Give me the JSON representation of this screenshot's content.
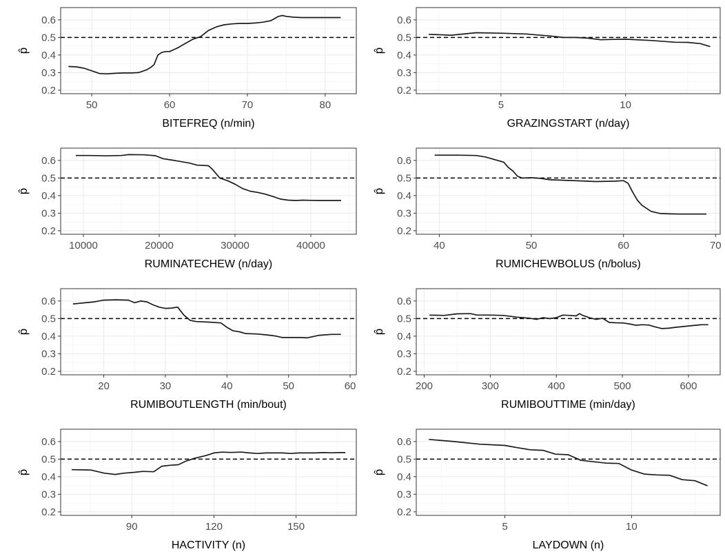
{
  "chart_data": [
    {
      "type": "line",
      "xlabel": "BITEFREQ (n/min)",
      "ylabel": "p̂",
      "xlim": [
        46,
        84
      ],
      "ylim": [
        0.18,
        0.67
      ],
      "xticks": [
        50,
        60,
        70,
        80
      ],
      "yticks": [
        0.2,
        0.3,
        0.4,
        0.5,
        0.6
      ],
      "reference_line": 0.5,
      "x": [
        47,
        48,
        49,
        50,
        51,
        52,
        53,
        54,
        55,
        56,
        57,
        57.6,
        58,
        58.5,
        59,
        59.5,
        60,
        61,
        62,
        63,
        64,
        65,
        66,
        67,
        68,
        69,
        70,
        71,
        72,
        73,
        74,
        74.5,
        75,
        76,
        77,
        78,
        79,
        80,
        81,
        82
      ],
      "y": [
        0.335,
        0.333,
        0.325,
        0.31,
        0.295,
        0.293,
        0.296,
        0.298,
        0.298,
        0.3,
        0.315,
        0.33,
        0.345,
        0.4,
        0.415,
        0.42,
        0.42,
        0.44,
        0.465,
        0.49,
        0.505,
        0.54,
        0.56,
        0.572,
        0.577,
        0.58,
        0.58,
        0.582,
        0.587,
        0.595,
        0.62,
        0.625,
        0.62,
        0.615,
        0.613,
        0.613,
        0.613,
        0.613,
        0.613,
        0.613
      ]
    },
    {
      "type": "line",
      "xlabel": "GRAZINGSTART (n/day)",
      "ylabel": "p̂",
      "xlim": [
        1.6,
        13.8
      ],
      "ylim": [
        0.18,
        0.67
      ],
      "xticks": [
        5,
        10
      ],
      "yticks": [
        0.2,
        0.3,
        0.4,
        0.5,
        0.6
      ],
      "reference_line": 0.5,
      "x": [
        2.1,
        3,
        4,
        5,
        6,
        7,
        7.5,
        8,
        8.5,
        9,
        9.5,
        10,
        11,
        12,
        12.5,
        13,
        13.4
      ],
      "y": [
        0.518,
        0.513,
        0.527,
        0.524,
        0.52,
        0.508,
        0.5,
        0.5,
        0.496,
        0.487,
        0.489,
        0.49,
        0.483,
        0.473,
        0.472,
        0.465,
        0.448
      ]
    },
    {
      "type": "line",
      "xlabel": "RUMINATECHEW (n/day)",
      "ylabel": "p̂",
      "xlim": [
        7000,
        46000
      ],
      "ylim": [
        0.18,
        0.67
      ],
      "xticks": [
        10000,
        20000,
        30000,
        40000
      ],
      "yticks": [
        0.2,
        0.3,
        0.4,
        0.5,
        0.6
      ],
      "reference_line": 0.5,
      "x": [
        9000,
        11000,
        13000,
        15000,
        16000,
        18000,
        19500,
        20500,
        22000,
        24000,
        25000,
        26500,
        27000,
        28000,
        29000,
        30000,
        31000,
        32000,
        33000,
        34000,
        35000,
        36000,
        37000,
        38000,
        39000,
        40000,
        41000,
        42000,
        43000,
        44000
      ],
      "y": [
        0.628,
        0.628,
        0.626,
        0.628,
        0.633,
        0.632,
        0.627,
        0.61,
        0.6,
        0.585,
        0.573,
        0.57,
        0.55,
        0.5,
        0.485,
        0.465,
        0.44,
        0.425,
        0.418,
        0.408,
        0.395,
        0.38,
        0.374,
        0.372,
        0.374,
        0.373,
        0.372,
        0.372,
        0.372,
        0.372
      ]
    },
    {
      "type": "line",
      "xlabel": "RUMICHEWBOLUS (n/bolus)",
      "ylabel": "p̂",
      "xlim": [
        37.5,
        70.5
      ],
      "ylim": [
        0.18,
        0.67
      ],
      "xticks": [
        40,
        50,
        60,
        70
      ],
      "yticks": [
        0.2,
        0.3,
        0.4,
        0.5,
        0.6
      ],
      "reference_line": 0.5,
      "x": [
        39.5,
        42,
        44,
        45,
        46,
        47,
        47.5,
        48,
        48.5,
        49,
        50,
        51,
        52,
        53,
        55,
        57,
        59,
        60,
        60.5,
        61,
        61.5,
        62,
        63,
        64,
        65,
        66,
        67,
        68,
        69
      ],
      "y": [
        0.63,
        0.63,
        0.628,
        0.62,
        0.605,
        0.59,
        0.56,
        0.54,
        0.51,
        0.5,
        0.502,
        0.498,
        0.49,
        0.488,
        0.484,
        0.48,
        0.482,
        0.485,
        0.47,
        0.42,
        0.375,
        0.345,
        0.31,
        0.298,
        0.296,
        0.295,
        0.295,
        0.295,
        0.295
      ]
    },
    {
      "type": "line",
      "xlabel": "RUMIBOUTLENGTH (min/bout)",
      "ylabel": "p̂",
      "xlim": [
        13,
        61
      ],
      "ylim": [
        0.18,
        0.67
      ],
      "xticks": [
        20,
        30,
        40,
        50,
        60
      ],
      "yticks": [
        0.2,
        0.3,
        0.4,
        0.5,
        0.6
      ],
      "reference_line": 0.5,
      "x": [
        15,
        17,
        18.5,
        20,
        22,
        24,
        25,
        26,
        27,
        28,
        29,
        30,
        31,
        32,
        33,
        34,
        35,
        37,
        39,
        40,
        41,
        42,
        43,
        45,
        47,
        48,
        49,
        50,
        51,
        52,
        53,
        55,
        57,
        58.5
      ],
      "y": [
        0.583,
        0.59,
        0.595,
        0.605,
        0.607,
        0.605,
        0.59,
        0.6,
        0.595,
        0.578,
        0.565,
        0.558,
        0.56,
        0.565,
        0.52,
        0.49,
        0.483,
        0.48,
        0.475,
        0.45,
        0.43,
        0.425,
        0.415,
        0.412,
        0.405,
        0.4,
        0.392,
        0.392,
        0.392,
        0.392,
        0.39,
        0.405,
        0.41,
        0.41
      ]
    },
    {
      "type": "line",
      "xlabel": "RUMIBOUTTIME (min/day)",
      "ylabel": "p̂",
      "xlim": [
        188,
        648
      ],
      "ylim": [
        0.18,
        0.67
      ],
      "xticks": [
        200,
        300,
        400,
        500,
        600
      ],
      "yticks": [
        0.2,
        0.3,
        0.4,
        0.5,
        0.6
      ],
      "reference_line": 0.5,
      "x": [
        208,
        230,
        250,
        270,
        280,
        300,
        320,
        340,
        360,
        370,
        380,
        390,
        400,
        410,
        420,
        430,
        435,
        440,
        450,
        460,
        470,
        480,
        490,
        500,
        510,
        520,
        530,
        540,
        550,
        560,
        570,
        580,
        600,
        620,
        630
      ],
      "y": [
        0.52,
        0.518,
        0.527,
        0.528,
        0.52,
        0.52,
        0.518,
        0.508,
        0.502,
        0.495,
        0.505,
        0.5,
        0.505,
        0.52,
        0.518,
        0.515,
        0.528,
        0.518,
        0.505,
        0.495,
        0.502,
        0.478,
        0.476,
        0.475,
        0.47,
        0.462,
        0.465,
        0.463,
        0.452,
        0.443,
        0.445,
        0.45,
        0.458,
        0.465,
        0.465
      ]
    },
    {
      "type": "line",
      "xlabel": "HACTIVITY (n)",
      "ylabel": "p̂",
      "xlim": [
        64,
        172
      ],
      "ylim": [
        0.18,
        0.67
      ],
      "xticks": [
        90,
        120,
        150
      ],
      "yticks": [
        0.2,
        0.3,
        0.4,
        0.5,
        0.6
      ],
      "reference_line": 0.5,
      "x": [
        68,
        75,
        80,
        84,
        87,
        91,
        94,
        98,
        101,
        104,
        107,
        110,
        113,
        117,
        120,
        123,
        126,
        130,
        133,
        136,
        139,
        142,
        145,
        148,
        151,
        154,
        157,
        160,
        163,
        166,
        168
      ],
      "y": [
        0.44,
        0.438,
        0.42,
        0.413,
        0.42,
        0.425,
        0.43,
        0.428,
        0.46,
        0.465,
        0.468,
        0.49,
        0.505,
        0.52,
        0.535,
        0.54,
        0.538,
        0.54,
        0.535,
        0.532,
        0.535,
        0.535,
        0.535,
        0.532,
        0.535,
        0.535,
        0.535,
        0.537,
        0.536,
        0.537,
        0.537
      ]
    },
    {
      "type": "line",
      "xlabel": "LAYDOWN (n)",
      "ylabel": "p̂",
      "xlim": [
        1.5,
        13.5
      ],
      "ylim": [
        0.18,
        0.67
      ],
      "xticks": [
        5,
        10
      ],
      "yticks": [
        0.2,
        0.3,
        0.4,
        0.5,
        0.6
      ],
      "reference_line": 0.5,
      "x": [
        2,
        3,
        4,
        5,
        5.5,
        6,
        6.5,
        7,
        7.5,
        8,
        8.5,
        9,
        9.5,
        10,
        10.5,
        11,
        11.5,
        12,
        12.5,
        13
      ],
      "y": [
        0.612,
        0.6,
        0.585,
        0.578,
        0.565,
        0.553,
        0.55,
        0.528,
        0.525,
        0.493,
        0.485,
        0.477,
        0.475,
        0.438,
        0.415,
        0.41,
        0.408,
        0.383,
        0.377,
        0.348
      ]
    }
  ]
}
